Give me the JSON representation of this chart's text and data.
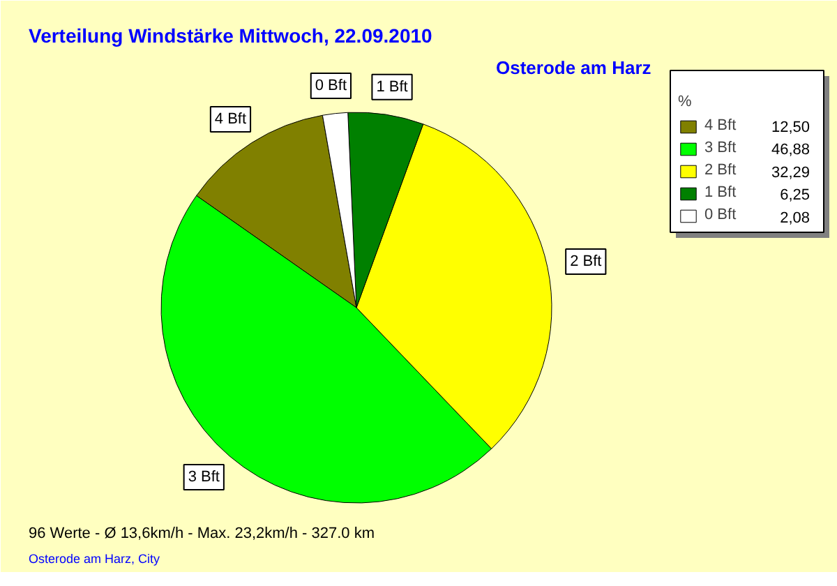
{
  "chart_data": {
    "type": "pie",
    "title": "Verteilung Windstärke  Mittwoch, 22.09.2010",
    "subtitle": "Osterode am Harz",
    "categories": [
      "4 Bft",
      "3 Bft",
      "2 Bft",
      "1 Bft",
      "0 Bft"
    ],
    "values": [
      12.5,
      46.88,
      32.29,
      6.25,
      2.08
    ],
    "value_labels": [
      "12,50",
      "46,88",
      "32,29",
      "6,25",
      "2,08"
    ],
    "colors": [
      "#808000",
      "#00ff00",
      "#ffff00",
      "#008000",
      "#ffffff"
    ],
    "legend": "top right",
    "legend_title": "%",
    "annotations": [
      "96 Werte   -   Ø 13,6km/h  -  Max. 23,2km/h   -   327.0 km",
      "Osterode am Harz, City"
    ]
  }
}
